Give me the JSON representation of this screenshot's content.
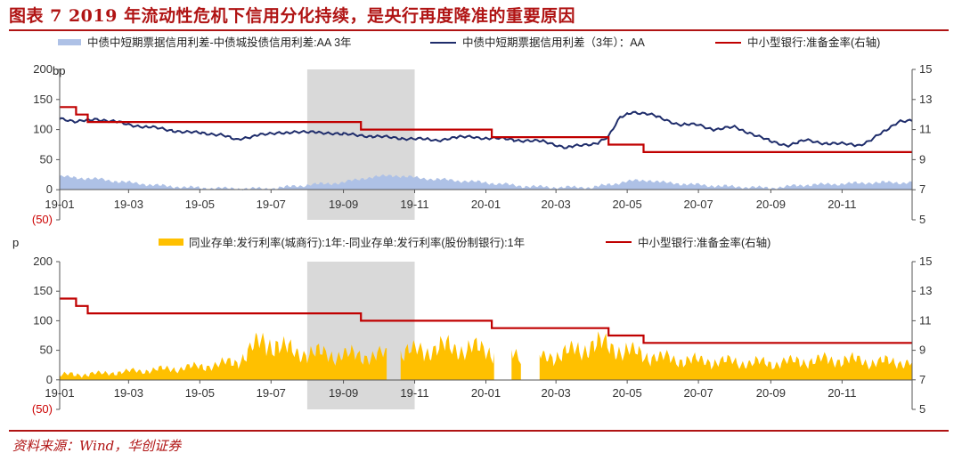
{
  "figure": {
    "title": "图表 7   2019 年流动性危机下信用分化持续，是央行再度降准的重要原因",
    "source": "资料来源：Wind，华创证券"
  },
  "colors": {
    "accent": "#b01414",
    "navy": "#1f2d6b",
    "spread_area": "#aec1e6",
    "gold_area": "#ffc000",
    "rrr_line": "#c00000",
    "shade": "#d9d9d9",
    "neg_tick": "#cc0000"
  },
  "chart_data": [
    {
      "type": "area",
      "unit_label": "bp",
      "x_tick_labels": [
        "19-01",
        "19-03",
        "19-05",
        "19-07",
        "19-09",
        "19-11",
        "20-01",
        "20-03",
        "20-05",
        "20-07",
        "20-09",
        "20-11"
      ],
      "y_left_ticks": [
        "200",
        "150",
        "100",
        "50",
        "0",
        "(50)"
      ],
      "y_right_ticks": [
        "15",
        "13",
        "11",
        "9",
        "7",
        "5"
      ],
      "ylim_left": [
        -50,
        200
      ],
      "ylim_right": [
        5,
        15
      ],
      "shaded_period": [
        "2019-08",
        "2019-11"
      ],
      "grid": false,
      "legend_position": "top",
      "series": [
        {
          "name": "中债中短期票据信用利差-中债城投债信用利差:AA 3年",
          "kind": "area",
          "axis": "left",
          "color": "#aec1e6",
          "points": [
            [
              "2019-01-01",
              22
            ],
            [
              "2019-02-01",
              18
            ],
            [
              "2019-03-01",
              12
            ],
            [
              "2019-04-01",
              6
            ],
            [
              "2019-05-01",
              3
            ],
            [
              "2019-06-01",
              2
            ],
            [
              "2019-07-01",
              2
            ],
            [
              "2019-08-01",
              8
            ],
            [
              "2019-09-01",
              12
            ],
            [
              "2019-09-20",
              20
            ],
            [
              "2019-10-15",
              24
            ],
            [
              "2019-11-01",
              20
            ],
            [
              "2019-12-01",
              16
            ],
            [
              "2020-01-01",
              12
            ],
            [
              "2020-02-01",
              6
            ],
            [
              "2020-03-01",
              4
            ],
            [
              "2020-04-01",
              4
            ],
            [
              "2020-04-20",
              10
            ],
            [
              "2020-05-01",
              14
            ],
            [
              "2020-05-20",
              16
            ],
            [
              "2020-06-01",
              12
            ],
            [
              "2020-07-01",
              8
            ],
            [
              "2020-08-01",
              5
            ],
            [
              "2020-09-01",
              3
            ],
            [
              "2020-10-01",
              8
            ],
            [
              "2020-11-01",
              10
            ],
            [
              "2020-12-01",
              12
            ]
          ]
        },
        {
          "name": "中债中短期票据信用利差（3年）：AA",
          "kind": "line",
          "axis": "left",
          "color": "#1f2d6b",
          "points": [
            [
              "2019-01-01",
              120
            ],
            [
              "2019-01-15",
              112
            ],
            [
              "2019-02-01",
              118
            ],
            [
              "2019-02-20",
              112
            ],
            [
              "2019-03-01",
              108
            ],
            [
              "2019-03-20",
              104
            ],
            [
              "2019-04-01",
              100
            ],
            [
              "2019-04-20",
              96
            ],
            [
              "2019-05-01",
              94
            ],
            [
              "2019-05-20",
              92
            ],
            [
              "2019-06-01",
              82
            ],
            [
              "2019-06-20",
              92
            ],
            [
              "2019-07-01",
              92
            ],
            [
              "2019-07-20",
              97
            ],
            [
              "2019-08-01",
              95
            ],
            [
              "2019-08-20",
              95
            ],
            [
              "2019-09-01",
              92
            ],
            [
              "2019-09-20",
              90
            ],
            [
              "2019-10-15",
              86
            ],
            [
              "2019-11-01",
              85
            ],
            [
              "2019-11-20",
              82
            ],
            [
              "2019-12-01",
              86
            ],
            [
              "2019-12-20",
              88
            ],
            [
              "2020-01-01",
              86
            ],
            [
              "2020-01-20",
              84
            ],
            [
              "2020-02-01",
              82
            ],
            [
              "2020-02-20",
              80
            ],
            [
              "2020-03-01",
              75
            ],
            [
              "2020-03-10",
              70
            ],
            [
              "2020-03-25",
              74
            ],
            [
              "2020-04-05",
              78
            ],
            [
              "2020-04-15",
              88
            ],
            [
              "2020-04-25",
              120
            ],
            [
              "2020-05-05",
              130
            ],
            [
              "2020-05-20",
              125
            ],
            [
              "2020-06-01",
              118
            ],
            [
              "2020-06-15",
              108
            ],
            [
              "2020-07-01",
              108
            ],
            [
              "2020-07-15",
              100
            ],
            [
              "2020-08-01",
              104
            ],
            [
              "2020-08-15",
              94
            ],
            [
              "2020-09-01",
              80
            ],
            [
              "2020-09-15",
              74
            ],
            [
              "2020-10-01",
              82
            ],
            [
              "2020-10-15",
              78
            ],
            [
              "2020-11-01",
              76
            ],
            [
              "2020-11-15",
              74
            ],
            [
              "2020-11-25",
              82
            ],
            [
              "2020-12-10",
              100
            ],
            [
              "2020-12-20",
              115
            ]
          ]
        },
        {
          "name": "中小型银行:准备金率(右轴)",
          "kind": "step",
          "axis": "right",
          "color": "#c00000",
          "points": [
            [
              "2019-01-01",
              12.5
            ],
            [
              "2019-01-15",
              12
            ],
            [
              "2019-01-25",
              11.5
            ],
            [
              "2019-09-16",
              11
            ],
            [
              "2020-01-06",
              10.5
            ],
            [
              "2020-04-15",
              10
            ],
            [
              "2020-05-15",
              9.5
            ],
            [
              "2020-12-31",
              9.5
            ]
          ]
        }
      ]
    },
    {
      "type": "area",
      "unit_label": "p",
      "x_tick_labels": [
        "19-01",
        "19-03",
        "19-05",
        "19-07",
        "19-09",
        "19-11",
        "20-01",
        "20-03",
        "20-05",
        "20-07",
        "20-09",
        "20-11"
      ],
      "y_left_ticks": [
        "200",
        "150",
        "100",
        "50",
        "0",
        "(50)"
      ],
      "y_right_ticks": [
        "15",
        "13",
        "11",
        "9",
        "7",
        "5"
      ],
      "ylim_left": [
        -50,
        200
      ],
      "ylim_right": [
        5,
        15
      ],
      "shaded_period": [
        "2019-08",
        "2019-11"
      ],
      "grid": false,
      "legend_position": "top",
      "gaps": [
        [
          "2019-10-10",
          "2019-10-18"
        ],
        [
          "2020-01-10",
          "2020-01-22"
        ],
        [
          "2020-02-01",
          "2020-02-15"
        ]
      ],
      "series": [
        {
          "name": "同业存单:发行利率(城商行):1年:-同业存单:发行利率(股份制银行):1年",
          "kind": "area",
          "axis": "left",
          "color": "#ffc000",
          "points": [
            [
              "2019-01-01",
              8
            ],
            [
              "2019-02-01",
              10
            ],
            [
              "2019-03-01",
              14
            ],
            [
              "2019-04-01",
              18
            ],
            [
              "2019-05-01",
              22
            ],
            [
              "2019-06-01",
              30
            ],
            [
              "2019-06-20",
              60
            ],
            [
              "2019-07-01",
              65
            ],
            [
              "2019-07-15",
              50
            ],
            [
              "2019-08-01",
              45
            ],
            [
              "2019-09-01",
              42
            ],
            [
              "2019-10-01",
              40
            ],
            [
              "2019-11-01",
              48
            ],
            [
              "2019-12-01",
              55
            ],
            [
              "2020-01-01",
              50
            ],
            [
              "2020-02-20",
              38
            ],
            [
              "2020-03-01",
              42
            ],
            [
              "2020-03-20",
              50
            ],
            [
              "2020-04-01",
              60
            ],
            [
              "2020-04-20",
              55
            ],
            [
              "2020-05-01",
              48
            ],
            [
              "2020-06-01",
              36
            ],
            [
              "2020-07-01",
              32
            ],
            [
              "2020-08-01",
              30
            ],
            [
              "2020-09-01",
              28
            ],
            [
              "2020-10-01",
              32
            ],
            [
              "2020-11-01",
              34
            ],
            [
              "2020-12-01",
              30
            ],
            [
              "2020-12-31",
              30
            ]
          ]
        },
        {
          "name": "中小型银行:准备金率(右轴)",
          "kind": "step",
          "axis": "right",
          "color": "#c00000",
          "points": [
            [
              "2019-01-01",
              12.5
            ],
            [
              "2019-01-15",
              12
            ],
            [
              "2019-01-25",
              11.5
            ],
            [
              "2019-09-16",
              11
            ],
            [
              "2020-01-06",
              10.5
            ],
            [
              "2020-04-15",
              10
            ],
            [
              "2020-05-15",
              9.5
            ],
            [
              "2020-12-31",
              9.5
            ]
          ]
        }
      ]
    }
  ]
}
